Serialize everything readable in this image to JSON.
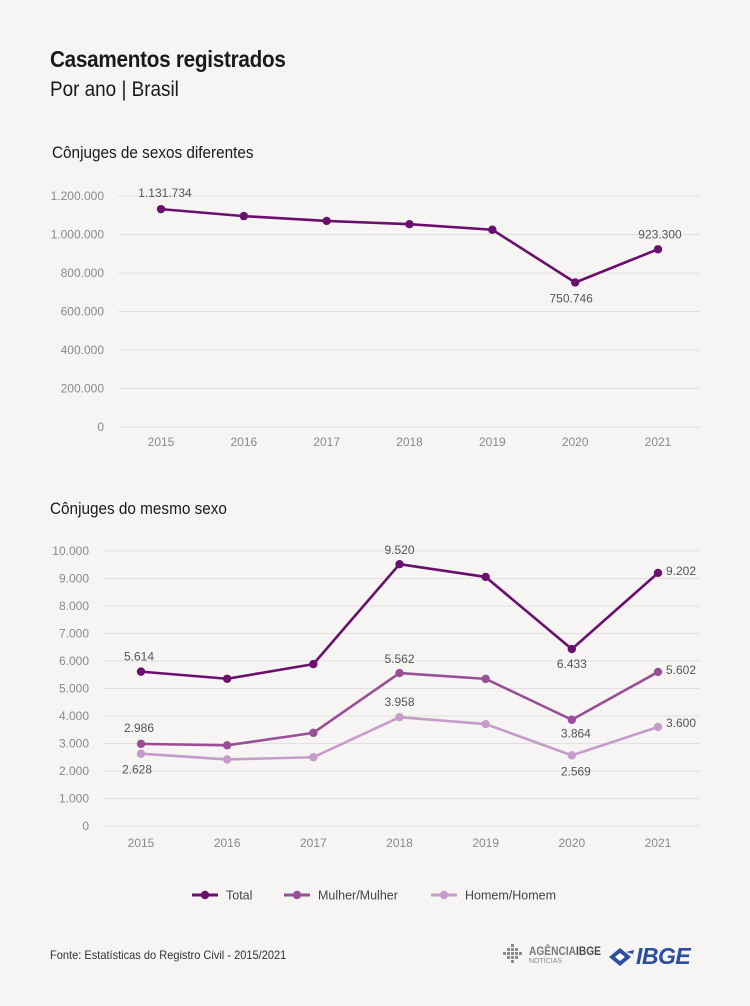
{
  "header": {
    "title": "Casamentos registrados",
    "subtitle": "Por ano | Brasil"
  },
  "chart1_title": "Cônjuges de sexos diferentes",
  "chart2_title": "Cônjuges do mesmo sexo",
  "source": "Fonte: Estatísticas do Registro Civil - 2015/2021",
  "logos": {
    "agencia_main": "AGÊNCIA",
    "agencia_bold": "IBGE",
    "agencia_sub": "NOTÍCIAS",
    "ibge": "IBGE"
  },
  "colors": {
    "total": "#6a0f6e",
    "mulher": "#9a4e98",
    "homem": "#c69cc9",
    "grid": "#e3e1de",
    "ibge_blue": "#2a4fa0"
  },
  "chart_data": [
    {
      "type": "line",
      "title": "Cônjuges de sexos diferentes",
      "categories": [
        "2015",
        "2016",
        "2017",
        "2018",
        "2019",
        "2020",
        "2021"
      ],
      "ylim": [
        0,
        1200000
      ],
      "yticks": [
        0,
        200000,
        400000,
        600000,
        800000,
        1000000,
        1200000
      ],
      "ytick_labels": [
        "0",
        "200.000",
        "400.000",
        "600.000",
        "800.000",
        "1.000.000",
        "1.200.000"
      ],
      "grid": true,
      "series": [
        {
          "values": [
            1131734,
            1095535,
            1070376,
            1053467,
            1024676,
            750746,
            923300
          ],
          "labels": [
            "1.131.734",
            null,
            null,
            null,
            null,
            "750.746",
            "923.300"
          ]
        }
      ]
    },
    {
      "type": "line",
      "title": "Cônjuges do mesmo sexo",
      "categories": [
        "2015",
        "2016",
        "2017",
        "2018",
        "2019",
        "2020",
        "2021"
      ],
      "ylim": [
        0,
        10000
      ],
      "yticks": [
        0,
        1000,
        2000,
        3000,
        4000,
        5000,
        6000,
        7000,
        8000,
        9000,
        10000
      ],
      "ytick_labels": [
        "0",
        "1.000",
        "2.000",
        "3.000",
        "4.000",
        "5.000",
        "6.000",
        "7.000",
        "8.000",
        "9.000",
        "10.000"
      ],
      "grid": true,
      "legend": "bottom",
      "series": [
        {
          "name": "Total",
          "values": [
            5614,
            5354,
            5887,
            9520,
            9056,
            6433,
            9202
          ],
          "labels": [
            "5.614",
            null,
            null,
            "9.520",
            null,
            "6.433",
            "9.202"
          ]
        },
        {
          "name": "Mulher/Mulher",
          "values": [
            2986,
            2933,
            3387,
            5562,
            5350,
            3864,
            5602
          ],
          "labels": [
            "2.986",
            null,
            null,
            "5.562",
            null,
            "3.864",
            "5.602"
          ]
        },
        {
          "name": "Homem/Homem",
          "values": [
            2628,
            2421,
            2500,
            3958,
            3706,
            2569,
            3600
          ],
          "labels": [
            "2.628",
            null,
            null,
            "3.958",
            null,
            "2.569",
            "3.600"
          ]
        }
      ]
    }
  ]
}
